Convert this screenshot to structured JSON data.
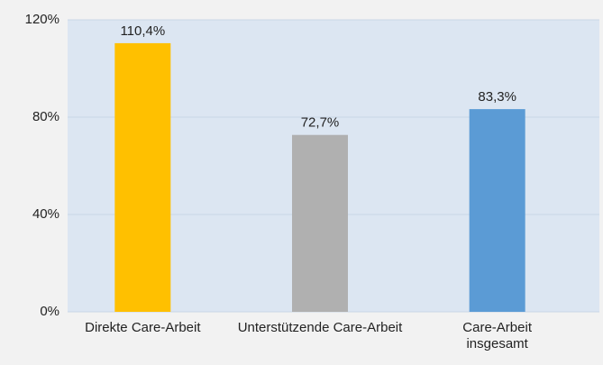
{
  "chart_data": {
    "type": "bar",
    "categories": [
      "Direkte Care-Arbeit",
      "Unterstützende Care-Arbeit",
      "Care-Arbeit insgesamt"
    ],
    "values": [
      110.4,
      72.7,
      83.3
    ],
    "value_labels": [
      "110,4%",
      "72,7%",
      "83,3%"
    ],
    "colors": [
      "#ffc000",
      "#b0b0b0",
      "#5b9bd5"
    ],
    "ylim": [
      0,
      120
    ],
    "yticks": [
      {
        "value": 0,
        "label": "0%"
      },
      {
        "value": 40,
        "label": "40%"
      },
      {
        "value": 80,
        "label": "80%"
      },
      {
        "value": 120,
        "label": "120%"
      }
    ],
    "grid": true
  }
}
